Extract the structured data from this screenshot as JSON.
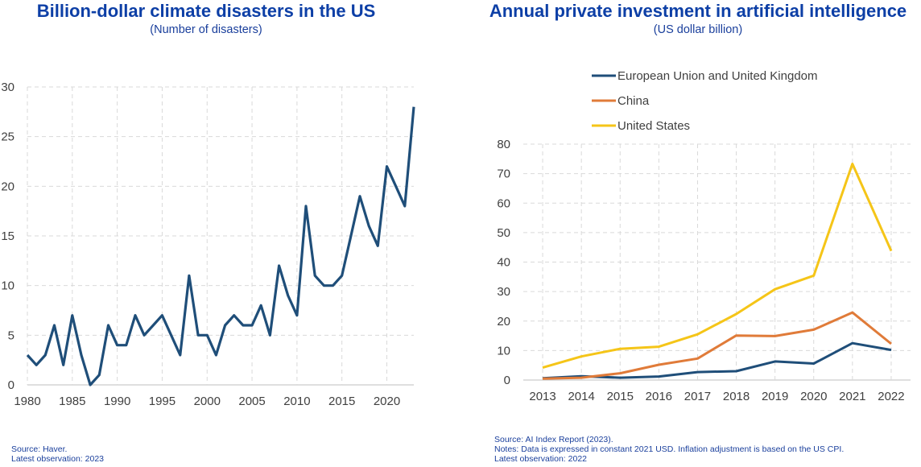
{
  "chart_data": [
    {
      "type": "line",
      "title": "Billion-dollar climate disasters in the US",
      "subtitle": "(Number of disasters)",
      "xlabel": "",
      "ylabel": "",
      "x": [
        1980,
        1981,
        1982,
        1983,
        1984,
        1985,
        1986,
        1987,
        1988,
        1989,
        1990,
        1991,
        1992,
        1993,
        1994,
        1995,
        1996,
        1997,
        1998,
        1999,
        2000,
        2001,
        2002,
        2003,
        2004,
        2005,
        2006,
        2007,
        2008,
        2009,
        2010,
        2011,
        2012,
        2013,
        2014,
        2015,
        2016,
        2017,
        2018,
        2019,
        2020,
        2021,
        2022,
        2023
      ],
      "series": [
        {
          "color": "#1f4e79",
          "values": [
            3,
            2,
            3,
            6,
            2,
            7,
            3,
            0,
            1,
            6,
            4,
            4,
            7,
            5,
            6,
            7,
            5,
            3,
            11,
            5,
            5,
            3,
            6,
            7,
            6,
            6,
            8,
            5,
            12,
            9,
            7,
            18,
            11,
            10,
            10,
            11,
            15,
            19,
            16,
            14,
            22,
            20,
            18,
            28
          ]
        }
      ],
      "xticks": [
        "1980",
        "1985",
        "1990",
        "1995",
        "2000",
        "2005",
        "2010",
        "2015",
        "2020"
      ],
      "xtick_values": [
        1980,
        1985,
        1990,
        1995,
        2000,
        2005,
        2010,
        2015,
        2020
      ],
      "yticks": [
        "0",
        "5",
        "10",
        "15",
        "20",
        "25",
        "30"
      ],
      "ylim": [
        0,
        30
      ],
      "xlim": [
        1980,
        2023
      ],
      "grid": true,
      "source_lines": [
        "Source: Haver.",
        "Latest observation: 2023"
      ]
    },
    {
      "type": "line",
      "title": "Annual private investment in artificial intelligence",
      "subtitle": "(US dollar billion)",
      "xlabel": "",
      "ylabel": "",
      "categories": [
        "2013",
        "2014",
        "2015",
        "2016",
        "2017",
        "2018",
        "2019",
        "2020",
        "2021",
        "2022"
      ],
      "series": [
        {
          "name": "European Union and United Kingdom",
          "color": "#1f4e79",
          "values": [
            0.6,
            1.3,
            0.8,
            1.2,
            2.7,
            3.0,
            6.3,
            5.6,
            12.5,
            10.2
          ]
        },
        {
          "name": "China",
          "color": "#e07b39",
          "values": [
            0.5,
            0.8,
            2.3,
            5.2,
            7.3,
            15.1,
            14.9,
            17.1,
            22.9,
            12.3
          ]
        },
        {
          "name": "United States",
          "color": "#f5c518",
          "values": [
            4.2,
            8.0,
            10.6,
            11.3,
            15.5,
            22.4,
            30.8,
            35.4,
            73.3,
            43.8
          ]
        }
      ],
      "yticks": [
        "0",
        "10",
        "20",
        "30",
        "40",
        "50",
        "60",
        "70",
        "80"
      ],
      "ylim": [
        0,
        80
      ],
      "grid": true,
      "legend_position": "top-left",
      "source_lines": [
        "Source: AI Index Report (2023).",
        "Notes: Data is expressed in constant 2021 USD. Inflation adjustment is based on the US CPI.",
        "Latest observation: 2022"
      ]
    }
  ]
}
